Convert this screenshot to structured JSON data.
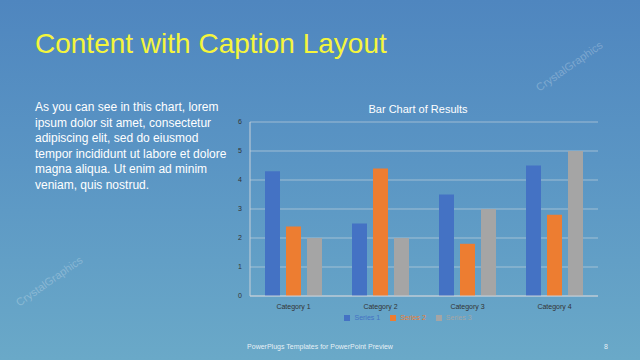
{
  "slide": {
    "title": "Content with Caption Layout",
    "caption": "As you can see in this chart, lorem ipsum dolor sit amet, consectetur adipiscing elit, sed do eiusmod tempor incididunt ut labore et dolore magna aliqua. Ut enim ad minim veniam, quis nostrud.",
    "footer": "PowerPlugs Templates for PowerPoint Preview",
    "page": "8",
    "watermark": "CrystalGraphics"
  },
  "chart_data": {
    "type": "bar",
    "title": "Bar Chart of Results",
    "categories": [
      "Category 1",
      "Category 2",
      "Category 3",
      "Category 4"
    ],
    "series": [
      {
        "name": "Series 1",
        "color": "#4472c4",
        "values": [
          4.3,
          2.5,
          3.5,
          4.5
        ]
      },
      {
        "name": "Series 2",
        "color": "#ed7d31",
        "values": [
          2.4,
          4.4,
          1.8,
          2.8
        ]
      },
      {
        "name": "Series 3",
        "color": "#a5a5a5",
        "values": [
          2,
          2,
          3,
          5
        ]
      }
    ],
    "ylim": [
      0,
      6
    ],
    "yticks": [
      0,
      1,
      2,
      3,
      4,
      5,
      6
    ],
    "grid": true,
    "legend": "bottom"
  }
}
